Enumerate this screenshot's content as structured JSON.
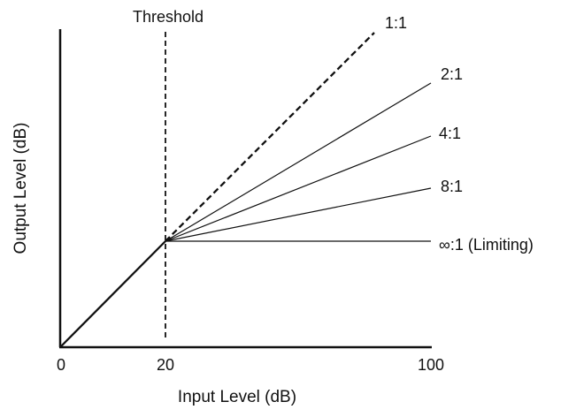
{
  "chart_data": {
    "type": "line",
    "title": "",
    "xlabel": "Input Level (dB)",
    "ylabel": "Output Level (dB)",
    "x_ticks": [
      "0",
      "20",
      "100"
    ],
    "threshold": {
      "label": "Threshold",
      "x": 20
    },
    "series": [
      {
        "name": "1:1",
        "ratio": 1,
        "style": "dashed"
      },
      {
        "name": "2:1",
        "ratio": 2,
        "style": "solid"
      },
      {
        "name": "4:1",
        "ratio": 4,
        "style": "solid"
      },
      {
        "name": "8:1",
        "ratio": 8,
        "style": "solid"
      },
      {
        "name": "∞:1 (Limiting)",
        "ratio": "infinity",
        "style": "solid"
      }
    ],
    "colors": {
      "ink": "#111111",
      "background": "#ffffff"
    }
  }
}
